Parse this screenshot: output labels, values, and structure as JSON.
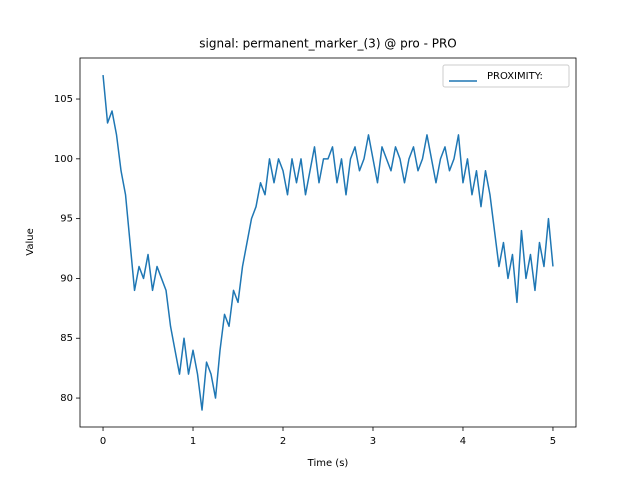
{
  "chart_data": {
    "type": "line",
    "title": "signal: permanent_marker_(3) @ pro - PRO",
    "x_label": "Time (s)",
    "y_label": "Value",
    "xlim": [
      -0.256,
      5.256
    ],
    "ylim": [
      77.58,
      108.43
    ],
    "xticks": [
      0,
      1,
      2,
      3,
      4,
      5
    ],
    "yticks": [
      80,
      85,
      90,
      95,
      100,
      105
    ],
    "legend": "upper right",
    "x": [
      0,
      0.05,
      0.1,
      0.15,
      0.2,
      0.25,
      0.3,
      0.35,
      0.4,
      0.45,
      0.5,
      0.55,
      0.6,
      0.65,
      0.7,
      0.75,
      0.8,
      0.85,
      0.9,
      0.95,
      1,
      1.05,
      1.1,
      1.15,
      1.2,
      1.25,
      1.3,
      1.35,
      1.4,
      1.45,
      1.5,
      1.55,
      1.6,
      1.65,
      1.7,
      1.75,
      1.8,
      1.85,
      1.9,
      1.95,
      2,
      2.05,
      2.1,
      2.15,
      2.2,
      2.25,
      2.3,
      2.35,
      2.4,
      2.45,
      2.5,
      2.55,
      2.6,
      2.65,
      2.7,
      2.75,
      2.8,
      2.85,
      2.9,
      2.95,
      3,
      3.05,
      3.1,
      3.15,
      3.2,
      3.25,
      3.3,
      3.35,
      3.4,
      3.45,
      3.5,
      3.55,
      3.6,
      3.65,
      3.7,
      3.75,
      3.8,
      3.85,
      3.9,
      3.95,
      4,
      4.05,
      4.1,
      4.15,
      4.2,
      4.25,
      4.3,
      4.35,
      4.4,
      4.45,
      4.5,
      4.55,
      4.6,
      4.65,
      4.7,
      4.75,
      4.8,
      4.85,
      4.9,
      4.95,
      5
    ],
    "series": [
      {
        "name": "PROXIMITY:",
        "color": "#1f77b4",
        "values": [
          107,
          103,
          104,
          102,
          99,
          97,
          93,
          89,
          91,
          90,
          92,
          89,
          91,
          90,
          89,
          86,
          84,
          82,
          85,
          82,
          84,
          82,
          79,
          83,
          82,
          80,
          84,
          87,
          86,
          89,
          88,
          91,
          93,
          95,
          96,
          98,
          97,
          100,
          98,
          100,
          99,
          97,
          100,
          98,
          100,
          97,
          99,
          101,
          98,
          100,
          100,
          101,
          98,
          100,
          97,
          100,
          101,
          99,
          100,
          102,
          100,
          98,
          101,
          100,
          99,
          101,
          100,
          98,
          100,
          101,
          99,
          100,
          102,
          100,
          98,
          100,
          101,
          99,
          100,
          102,
          98,
          100,
          97,
          99,
          96,
          99,
          97,
          94,
          91,
          93,
          90,
          92,
          88,
          94,
          90,
          92,
          89,
          93,
          91,
          95,
          91
        ]
      }
    ]
  }
}
